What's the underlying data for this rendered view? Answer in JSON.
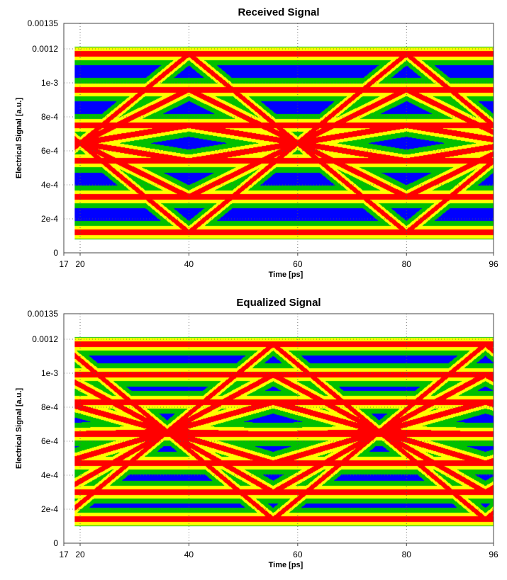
{
  "chart_data": [
    {
      "type": "heatmap",
      "title": "Received Signal",
      "xlabel": "Time [ps]",
      "ylabel": "Electrical Signal [a.u.]",
      "xlim": [
        17,
        96
      ],
      "ylim": [
        0,
        0.00135
      ],
      "xticks": [
        {
          "value": 17,
          "label": "17"
        },
        {
          "value": 20,
          "label": "20"
        },
        {
          "value": 40,
          "label": "40"
        },
        {
          "value": 60,
          "label": "60"
        },
        {
          "value": 80,
          "label": "80"
        },
        {
          "value": 96,
          "label": "96"
        }
      ],
      "yticks": [
        {
          "value": 0,
          "label": "0"
        },
        {
          "value": 0.0002,
          "label": "2e-4"
        },
        {
          "value": 0.0004,
          "label": "4e-4"
        },
        {
          "value": 0.0006,
          "label": "6e-4"
        },
        {
          "value": 0.0008,
          "label": "8e-4"
        },
        {
          "value": 0.001,
          "label": "1e-3"
        },
        {
          "value": 0.0012,
          "label": "0.0012"
        },
        {
          "value": 0.00135,
          "label": "0.00135"
        }
      ],
      "grid": true,
      "plot_type": "eye-diagram density",
      "data_x_range": [
        19,
        96
      ],
      "levels": [
        0.00012,
        0.00033,
        0.00054,
        0.00075,
        0.00096,
        0.00117
      ],
      "crossing_times": [
        20,
        60
      ],
      "eye_centers": [
        {
          "x": 40,
          "y": 0.00065
        },
        {
          "x": 80,
          "y": 0.00065
        }
      ],
      "colors": [
        "#ff00ff",
        "#0000ff",
        "#00c000",
        "#ffff00",
        "#ff0000"
      ]
    },
    {
      "type": "heatmap",
      "title": "Equalized Signal",
      "xlabel": "Time [ps]",
      "ylabel": "Electrical Signal [a.u.]",
      "xlim": [
        17,
        96
      ],
      "ylim": [
        0,
        0.00135
      ],
      "xticks": [
        {
          "value": 17,
          "label": "17"
        },
        {
          "value": 20,
          "label": "20"
        },
        {
          "value": 40,
          "label": "40"
        },
        {
          "value": 60,
          "label": "60"
        },
        {
          "value": 80,
          "label": "80"
        },
        {
          "value": 96,
          "label": "96"
        }
      ],
      "yticks": [
        {
          "value": 0,
          "label": "0"
        },
        {
          "value": 0.0002,
          "label": "2e-4"
        },
        {
          "value": 0.0004,
          "label": "4e-4"
        },
        {
          "value": 0.0006,
          "label": "6e-4"
        },
        {
          "value": 0.0008,
          "label": "8e-4"
        },
        {
          "value": 0.001,
          "label": "1e-3"
        },
        {
          "value": 0.0012,
          "label": "0.0012"
        },
        {
          "value": 0.00135,
          "label": "0.00135"
        }
      ],
      "grid": true,
      "plot_type": "eye-diagram density",
      "data_x_range": [
        19,
        96
      ],
      "levels": [
        0.00014,
        0.0003,
        0.00047,
        0.00064,
        0.00083,
        0.00099,
        0.00117
      ],
      "crossing_times": [
        36,
        75
      ],
      "eye_centers": [
        {
          "x": 56,
          "y": 0.00064
        },
        {
          "x": 18,
          "y": 0.00064
        },
        {
          "x": 95,
          "y": 0.00064
        }
      ],
      "colors": [
        "#ff00ff",
        "#0000ff",
        "#00c000",
        "#ffff00",
        "#ff0000"
      ]
    }
  ]
}
